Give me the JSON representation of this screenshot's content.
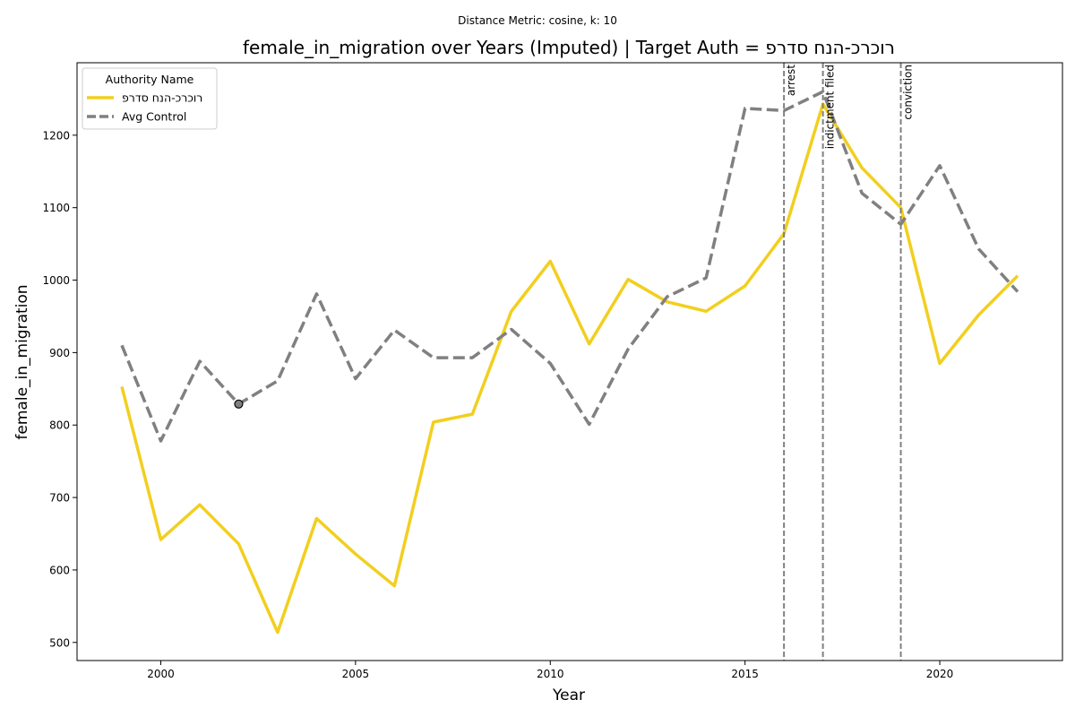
{
  "chart_data": {
    "type": "line",
    "suptitle": "Distance Metric: cosine, k: 10",
    "title": "female_in_migration over Years (Imputed) | Target Auth = רוכרכ-הנח סדרפ",
    "xlabel": "Year",
    "ylabel": "female_in_migration",
    "xlim": [
      1997.85,
      2023.15
    ],
    "ylim": [
      475,
      1300
    ],
    "xticks": [
      2000,
      2005,
      2010,
      2015,
      2020
    ],
    "yticks": [
      500,
      600,
      700,
      800,
      900,
      1000,
      1100,
      1200
    ],
    "grid": false,
    "legend": {
      "title": "Authority Name",
      "placement": "top-left"
    },
    "x": [
      1999,
      2000,
      2001,
      2002,
      2003,
      2004,
      2005,
      2006,
      2007,
      2008,
      2009,
      2010,
      2011,
      2012,
      2013,
      2014,
      2015,
      2016,
      2017,
      2018,
      2019,
      2020,
      2021,
      2022
    ],
    "series": [
      {
        "name": "רוכרכ-הנח סדרפ",
        "color": "#f2cf1f",
        "style": "solid",
        "values": [
          853,
          642,
          690,
          636,
          514,
          671,
          622,
          578,
          804,
          815,
          957,
          1026,
          912,
          1001,
          970,
          957,
          992,
          1064,
          1243,
          1155,
          1100,
          885,
          952,
          1006
        ]
      },
      {
        "name": "Avg Control",
        "color": "#808080",
        "style": "dashed",
        "values": [
          910,
          778,
          888,
          829,
          861,
          981,
          864,
          931,
          893,
          893,
          932,
          885,
          801,
          905,
          977,
          1003,
          1237,
          1234,
          1260,
          1120,
          1077,
          1158,
          1043,
          984
        ]
      }
    ],
    "highlight_point": {
      "x": 2002,
      "y": 829,
      "color": "#808080"
    },
    "events": [
      {
        "x": 2016,
        "label": "arrest"
      },
      {
        "x": 2017,
        "label": "indictment filed"
      },
      {
        "x": 2019,
        "label": "conviction"
      }
    ]
  }
}
